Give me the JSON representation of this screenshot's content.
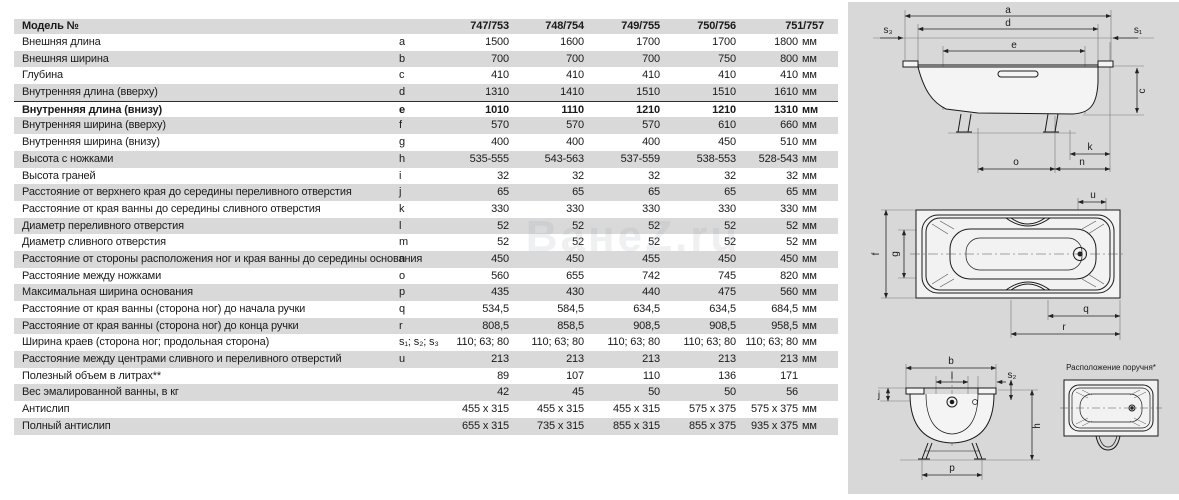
{
  "colors": {
    "stripe": "#d9d9d9",
    "panel_bg": "#d8d8d8",
    "text": "#1a1a1a",
    "highlight_border": "#2f2f2f"
  },
  "watermark": "ВанеZ.ru",
  "table": {
    "header_label": "Модель №",
    "columns": [
      "747/753",
      "748/754",
      "749/755",
      "750/756",
      "751/757"
    ],
    "rows": [
      {
        "label": "Внешняя длина",
        "letter": "a",
        "values": [
          "1500",
          "1600",
          "1700",
          "1700",
          "1800"
        ],
        "unit": "мм"
      },
      {
        "label": "Внешняя ширина",
        "letter": "b",
        "values": [
          "700",
          "700",
          "700",
          "750",
          "800"
        ],
        "unit": "мм"
      },
      {
        "label": "Глубина",
        "letter": "c",
        "values": [
          "410",
          "410",
          "410",
          "410",
          "410"
        ],
        "unit": "мм"
      },
      {
        "label": "Внутренняя длина (вверху)",
        "letter": "d",
        "values": [
          "1310",
          "1410",
          "1510",
          "1510",
          "1610"
        ],
        "unit": "мм"
      },
      {
        "label": "Внутренняя длина (внизу)",
        "letter": "e",
        "values": [
          "1010",
          "1110",
          "1210",
          "1210",
          "1310"
        ],
        "unit": "мм",
        "bold": true
      },
      {
        "label": "Внутренняя ширина (вверху)",
        "letter": "f",
        "values": [
          "570",
          "570",
          "570",
          "610",
          "660"
        ],
        "unit": "мм"
      },
      {
        "label": "Внутренняя ширина (внизу)",
        "letter": "g",
        "values": [
          "400",
          "400",
          "400",
          "450",
          "510"
        ],
        "unit": "мм"
      },
      {
        "label": "Высота с ножками",
        "letter": "h",
        "values": [
          "535-555",
          "543-563",
          "537-559",
          "538-553",
          "528-543"
        ],
        "unit": "мм"
      },
      {
        "label": "Высота граней",
        "letter": "i",
        "values": [
          "32",
          "32",
          "32",
          "32",
          "32"
        ],
        "unit": "мм"
      },
      {
        "label": "Расстояние от верхнего края до середины переливного отверстия",
        "letter": "j",
        "values": [
          "65",
          "65",
          "65",
          "65",
          "65"
        ],
        "unit": "мм"
      },
      {
        "label": "Расстояние от края ванны до середины сливного отверстия",
        "letter": "k",
        "values": [
          "330",
          "330",
          "330",
          "330",
          "330"
        ],
        "unit": "мм"
      },
      {
        "label": "Диаметр переливного отверстия",
        "letter": "l",
        "values": [
          "52",
          "52",
          "52",
          "52",
          "52"
        ],
        "unit": "мм"
      },
      {
        "label": "Диаметр сливного отверстия",
        "letter": "m",
        "values": [
          "52",
          "52",
          "52",
          "52",
          "52"
        ],
        "unit": "мм"
      },
      {
        "label": "Расстояние от стороны расположения ног и края ванны до середины основания",
        "letter": "n",
        "values": [
          "450",
          "450",
          "455",
          "450",
          "450"
        ],
        "unit": "мм"
      },
      {
        "label": "Расстояние между ножками",
        "letter": "o",
        "values": [
          "560",
          "655",
          "742",
          "745",
          "820"
        ],
        "unit": "мм"
      },
      {
        "label": "Максимальная ширина основания",
        "letter": "p",
        "values": [
          "435",
          "430",
          "440",
          "475",
          "560"
        ],
        "unit": "мм"
      },
      {
        "label": "Расстояние от края ванны (сторона ног) до начала ручки",
        "letter": "q",
        "values": [
          "534,5",
          "584,5",
          "634,5",
          "634,5",
          "684,5"
        ],
        "unit": "мм"
      },
      {
        "label": "Расстояние от края ванны (сторона ног) до конца ручки",
        "letter": "r",
        "values": [
          "808,5",
          "858,5",
          "908,5",
          "908,5",
          "958,5"
        ],
        "unit": "мм"
      },
      {
        "label": "Ширина краев (сторона ног; продольная сторона)",
        "letter": "s₁; s₂; s₃",
        "values": [
          "110; 63; 80",
          "110; 63; 80",
          "110; 63; 80",
          "110; 63; 80",
          "110; 63; 80"
        ],
        "unit": "мм"
      },
      {
        "label": "Расстояние между центрами сливного и переливного отверстий",
        "letter": "u",
        "values": [
          "213",
          "213",
          "213",
          "213",
          "213"
        ],
        "unit": "мм"
      },
      {
        "label": "Полезный объем в литрах**",
        "letter": "",
        "values": [
          "89",
          "107",
          "110",
          "136",
          "171"
        ],
        "unit": ""
      },
      {
        "label": "Вес эмалированной ванны, в кг",
        "letter": "",
        "values": [
          "42",
          "45",
          "50",
          "50",
          "56"
        ],
        "unit": ""
      },
      {
        "label": "Антислип",
        "letter": "",
        "values": [
          "455 x 315",
          "455 x 315",
          "455 x 315",
          "575 x 375",
          "575 x 375"
        ],
        "unit": "мм"
      },
      {
        "label": "Полный антислип",
        "letter": "",
        "values": [
          "655 x 315",
          "735 x 315",
          "855 x 315",
          "855 x 375",
          "935 x 375"
        ],
        "unit": "мм"
      }
    ]
  },
  "diagrams": {
    "side_view": {
      "a": "a",
      "d": "d",
      "e": "e",
      "s3": "s₃",
      "s1": "s₁",
      "c": "c",
      "k": "k",
      "o": "o",
      "n": "n"
    },
    "top_view": {
      "f": "f",
      "g": "g",
      "u": "u",
      "q": "q",
      "r": "r"
    },
    "end_view": {
      "b": "b",
      "l": "l",
      "s2": "s₂",
      "j": "j",
      "h": "h",
      "p": "p"
    },
    "handrail": {
      "title": "Расположение поручня*"
    }
  }
}
